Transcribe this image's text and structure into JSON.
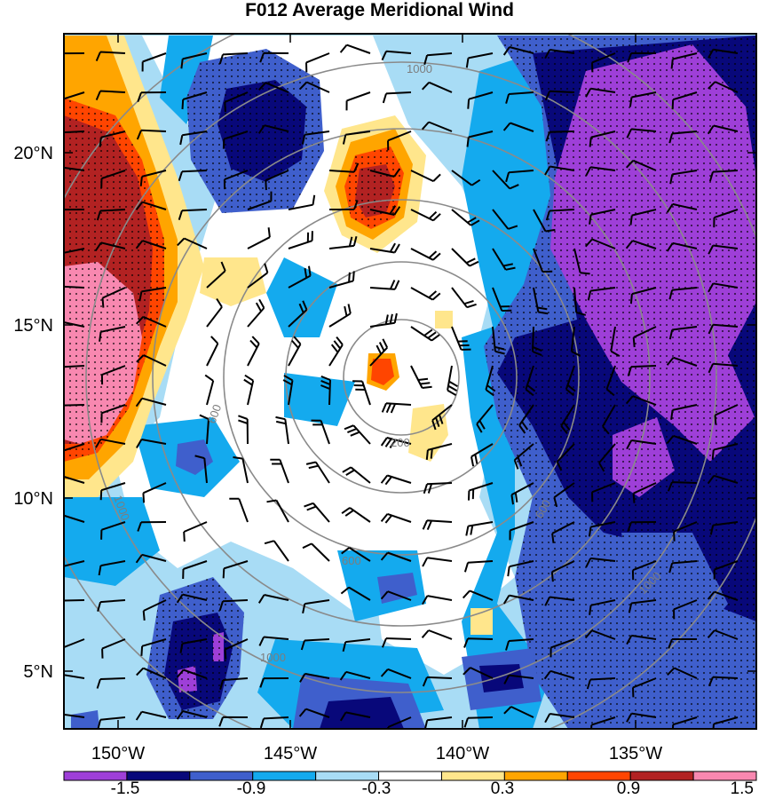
{
  "title": "F012 Average Meridional Wind",
  "axes": {
    "lat_ticks": [
      "5°N",
      "10°N",
      "15°N",
      "20°N"
    ],
    "lon_ticks": [
      "150°W",
      "145°W",
      "140°W",
      "135°W"
    ]
  },
  "range_rings": {
    "labels": [
      "200",
      "600",
      "600",
      "600",
      "1000",
      "1000",
      "1000",
      "1000"
    ]
  },
  "colorbar": {
    "labels": [
      "-1.5",
      "-0.9",
      "-0.3",
      "0.3",
      "0.9",
      "1.5"
    ],
    "colors": [
      "#9e3fd8",
      "#08087a",
      "#3f5fcc",
      "#14aaee",
      "#a8dcf5",
      "#ffffff",
      "#ffe68c",
      "#ffa500",
      "#ff4500",
      "#b22222",
      "#f888b0"
    ]
  },
  "chart_data": {
    "type": "heatmap",
    "title": "F012 Average Meridional Wind",
    "x_ticks": [
      "150°W",
      "145°W",
      "140°W",
      "135°W"
    ],
    "y_ticks": [
      "5°N",
      "10°N",
      "15°N",
      "20°N"
    ],
    "color_levels": [
      -1.5,
      -0.9,
      -0.3,
      0.3,
      0.9,
      1.5
    ],
    "range_ring_labels": [
      200,
      600,
      1000
    ],
    "overlays": [
      "wind barbs",
      "stippling",
      "range rings"
    ]
  }
}
